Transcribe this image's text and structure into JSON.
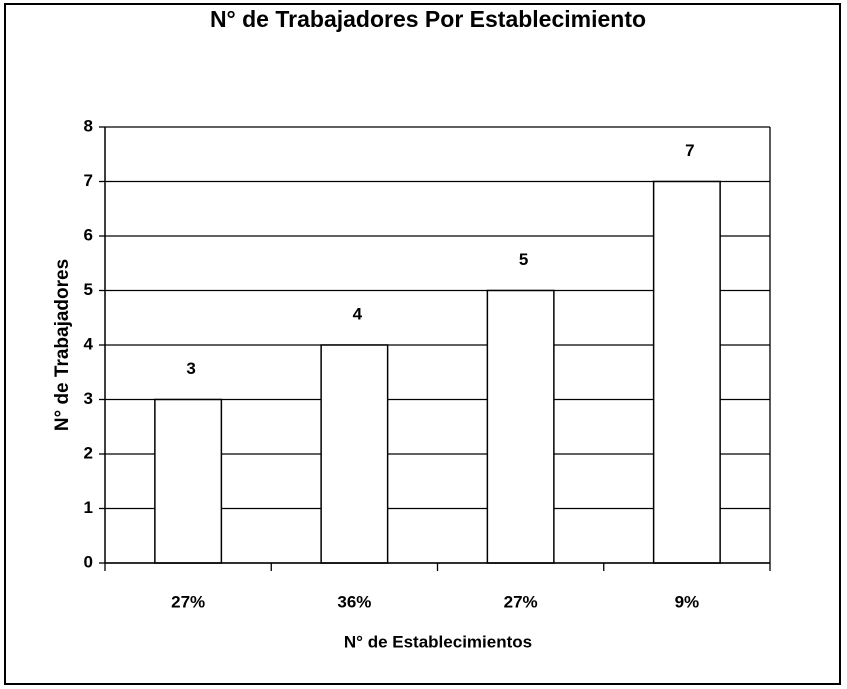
{
  "chart_data": {
    "type": "bar",
    "title": "N° de Trabajadores Por Establecimiento",
    "x_label": "N° de Establecimientos",
    "y_label": "N° de Trabajadores",
    "categories": [
      "27%",
      "36%",
      "27%",
      "9%"
    ],
    "values": [
      3,
      4,
      5,
      7
    ],
    "color": "#ffffff",
    "ylim": [
      0,
      8
    ],
    "yticks": [
      0,
      1,
      2,
      3,
      4,
      5,
      6,
      7,
      8
    ],
    "grid": true
  }
}
